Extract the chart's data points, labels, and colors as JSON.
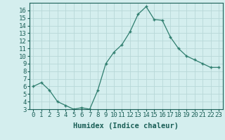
{
  "x": [
    0,
    1,
    2,
    3,
    4,
    5,
    6,
    7,
    8,
    9,
    10,
    11,
    12,
    13,
    14,
    15,
    16,
    17,
    18,
    19,
    20,
    21,
    22,
    23
  ],
  "y": [
    6,
    6.5,
    5.5,
    4,
    3.5,
    3,
    3.2,
    3,
    5.5,
    9,
    10.5,
    11.5,
    13.2,
    15.5,
    16.5,
    14.8,
    14.7,
    12.5,
    11,
    10,
    9.5,
    9,
    8.5,
    8.5
  ],
  "line_color": "#2e7d6e",
  "marker": "+",
  "bg_color": "#d4eeee",
  "grid_color": "#b8d8d8",
  "xlabel": "Humidex (Indice chaleur)",
  "ylim": [
    3,
    17
  ],
  "xlim": [
    -0.5,
    23.5
  ],
  "yticks": [
    3,
    4,
    5,
    6,
    7,
    8,
    9,
    10,
    11,
    12,
    13,
    14,
    15,
    16
  ],
  "xticks": [
    0,
    1,
    2,
    3,
    4,
    5,
    6,
    7,
    8,
    9,
    10,
    11,
    12,
    13,
    14,
    15,
    16,
    17,
    18,
    19,
    20,
    21,
    22,
    23
  ],
  "tick_color": "#1a5f57",
  "axis_color": "#1a5f57",
  "fontsize": 6.5,
  "label_fontsize": 7.5
}
